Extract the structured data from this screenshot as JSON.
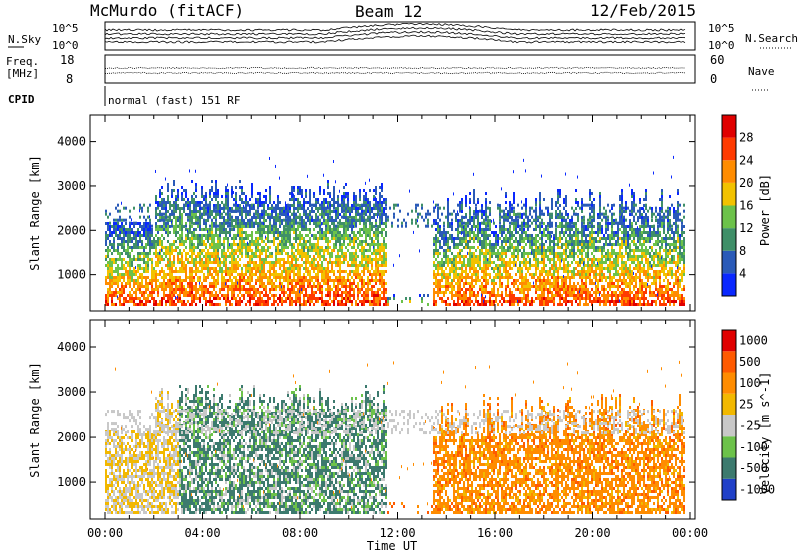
{
  "header": {
    "station": "McMurdo (fitACF)",
    "beam": "Beam 12",
    "date": "12/Feb/2015"
  },
  "top_panels": {
    "nsky_label": "N.Sky",
    "nsky_ticks": [
      "10^5",
      "10^0"
    ],
    "nsearch_label": "N.Search",
    "nsearch_ticks": [
      "10^5",
      "10^0"
    ],
    "freq_label_1": "Freq.",
    "freq_label_2": "[MHz]",
    "freq_ticks": [
      "18",
      "8"
    ],
    "nave_label": "Nave",
    "nave_ticks": [
      "60",
      "0"
    ],
    "cpid_label": "CPID",
    "cpid_text": "normal (fast) 151 RF"
  },
  "chart_data": [
    {
      "type": "heatmap",
      "name": "power",
      "xlabel": "Time UT",
      "ylabel": "Slant Range [km]",
      "x_ticks": [
        "00:00",
        "04:00",
        "08:00",
        "12:00",
        "16:00",
        "20:00",
        "00:00"
      ],
      "y_ticks": [
        1000,
        2000,
        3000,
        4000
      ],
      "ylim": [
        180,
        4600
      ],
      "colorbar_label": "Power [dB]",
      "colorbar_ticks": [
        4,
        8,
        12,
        16,
        20,
        24,
        28
      ],
      "colorbar_colors": [
        "#0a28ff",
        "#2a5ab8",
        "#3f8f68",
        "#6cc24a",
        "#f2c200",
        "#ff8c00",
        "#ff3a00",
        "#e00000"
      ]
    },
    {
      "type": "heatmap",
      "name": "velocity",
      "xlabel": "Time UT",
      "ylabel": "Slant Range [km]",
      "x_ticks": [
        "00:00",
        "04:00",
        "08:00",
        "12:00",
        "16:00",
        "20:00",
        "00:00"
      ],
      "y_ticks": [
        1000,
        2000,
        3000,
        4000
      ],
      "ylim": [
        180,
        4600
      ],
      "colorbar_label": "Velocity [m s^-1]",
      "colorbar_ticks": [
        1000,
        500,
        100,
        25,
        -25,
        -100,
        -500,
        -1000
      ],
      "colorbar_colors": [
        "#2040c8",
        "#3c7a6e",
        "#6cc24a",
        "#c8c8c8",
        "#f2b800",
        "#ff8c00",
        "#ff5a00",
        "#e00000"
      ]
    }
  ]
}
